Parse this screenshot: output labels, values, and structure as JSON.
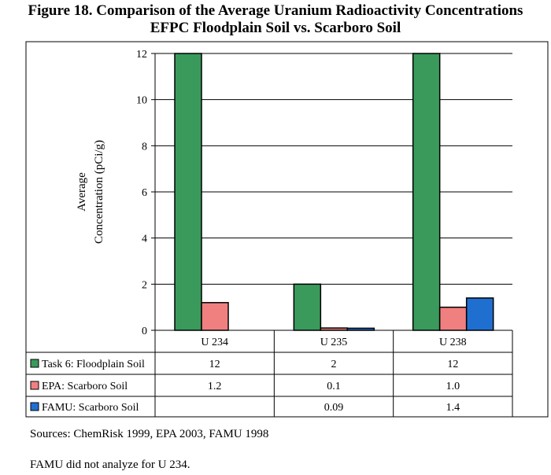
{
  "title_line1": "Figure 18. Comparison of the Average Uranium Radioactivity Concentrations",
  "title_line2": "EFPC Floodplain Soil vs. Scarboro Soil",
  "sources": "Sources:    ChemRisk 1999, EPA 2003, FAMU 1998",
  "note": "FAMU did not analyze for U 234.",
  "chart_data": {
    "type": "bar",
    "ylabel_lines": [
      "Average",
      "Concentration (pCi/g)"
    ],
    "categories": [
      "U 234",
      "U 235",
      "U 238"
    ],
    "ylim": [
      0,
      12
    ],
    "yticks": [
      0,
      2,
      4,
      6,
      8,
      10,
      12
    ],
    "grid": true,
    "legend_placement": "data-table-left",
    "series": [
      {
        "name": "Task 6: Floodplain Soil",
        "color": "#3a9a5c",
        "values": [
          12,
          2,
          12
        ],
        "table_labels": [
          "12",
          "2",
          "12"
        ]
      },
      {
        "name": "EPA: Scarboro Soil",
        "color": "#f08080",
        "values": [
          1.2,
          0.1,
          1.0
        ],
        "table_labels": [
          "1.2",
          "0.1",
          "1.0"
        ]
      },
      {
        "name": "FAMU: Scarboro Soil",
        "color": "#1f6fd1",
        "values": [
          null,
          0.09,
          1.4
        ],
        "table_labels": [
          "",
          "0.09",
          "1.4"
        ]
      }
    ]
  }
}
